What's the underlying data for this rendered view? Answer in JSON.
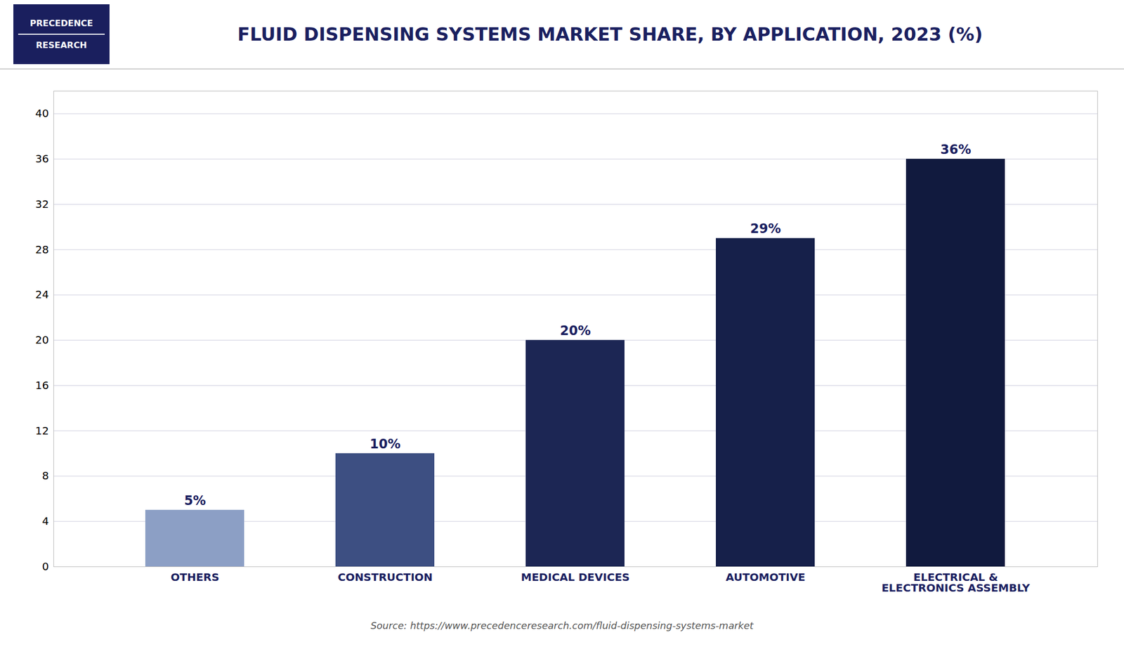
{
  "chart_data": {
    "type": "bar",
    "title": "FLUID DISPENSING SYSTEMS MARKET SHARE, BY APPLICATION, 2023 (%)",
    "annotations": [
      "PRECEDENCE",
      "RESEARCH"
    ],
    "source": "Source: https://www.precedenceresearch.com/fluid-dispensing-systems-market",
    "categories": [
      "OTHERS",
      "CONSTRUCTION",
      "MEDICAL DEVICES",
      "AUTOMOTIVE",
      "ELECTRICAL &\nELECTRONICS ASSEMBLY"
    ],
    "values": [
      5,
      10,
      20,
      29,
      36
    ],
    "value_labels": [
      "5%",
      "10%",
      "20%",
      "29%",
      "36%"
    ],
    "colors": [
      "#8c9fc5",
      "#3d4f82",
      "#1c2654",
      "#16204a",
      "#111a3e"
    ],
    "ylim": [
      0,
      42
    ],
    "yticks": [
      0,
      4,
      8,
      12,
      16,
      20,
      24,
      28,
      32,
      36,
      40
    ],
    "grid": true,
    "data_labels": true
  }
}
